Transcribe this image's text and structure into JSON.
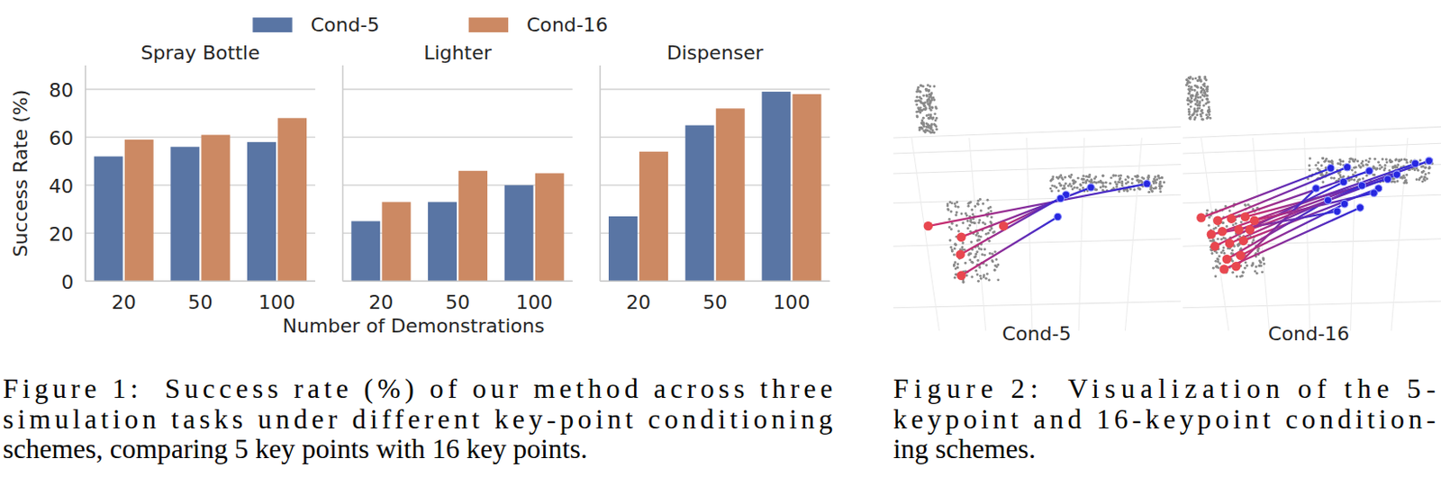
{
  "chart_data": [
    {
      "type": "bar",
      "title": "Spray Bottle",
      "y_label": "Success Rate (%)",
      "categories": [
        "20",
        "50",
        "100"
      ],
      "series": [
        {
          "name": "Cond-5",
          "color": "#5975a4",
          "values": [
            52,
            56,
            58
          ]
        },
        {
          "name": "Cond-16",
          "color": "#cc8963",
          "values": [
            59,
            61,
            68
          ]
        }
      ],
      "ylim": [
        0,
        90
      ],
      "yticks": [
        0,
        20,
        40,
        60,
        80
      ],
      "grid": true,
      "legend": "top"
    },
    {
      "type": "bar",
      "title": "Lighter",
      "x_label": "Number of Demonstrations",
      "categories": [
        "20",
        "50",
        "100"
      ],
      "series": [
        {
          "name": "Cond-5",
          "color": "#5975a4",
          "values": [
            25,
            33,
            40
          ]
        },
        {
          "name": "Cond-16",
          "color": "#cc8963",
          "values": [
            33,
            46,
            45
          ]
        }
      ],
      "ylim": [
        0,
        90
      ],
      "yticks": [
        0,
        20,
        40,
        60,
        80
      ],
      "grid": true,
      "tick_labels": "x"
    },
    {
      "type": "bar",
      "title": "Dispenser",
      "categories": [
        "20",
        "50",
        "100"
      ],
      "series": [
        {
          "name": "Cond-5",
          "color": "#5975a4",
          "values": [
            27,
            65,
            79
          ]
        },
        {
          "name": "Cond-16",
          "color": "#cc8963",
          "values": [
            54,
            72,
            78
          ]
        }
      ],
      "ylim": [
        0,
        90
      ],
      "yticks": [
        0,
        20,
        40,
        60,
        80
      ],
      "grid": true,
      "tick_labels": "x"
    }
  ],
  "figure2": {
    "labels": [
      "Cond-5",
      "Cond-16"
    ]
  },
  "captions": [
    [
      "Figure 1:  Success rate (%) of our method across three",
      "simulation tasks under different key-point conditioning",
      "schemes, comparing 5 key points with 16 key points."
    ],
    [
      "Figure 2:  Visualization of the 5-",
      "keypoint and 16-keypoint condition-",
      "ing schemes."
    ]
  ]
}
